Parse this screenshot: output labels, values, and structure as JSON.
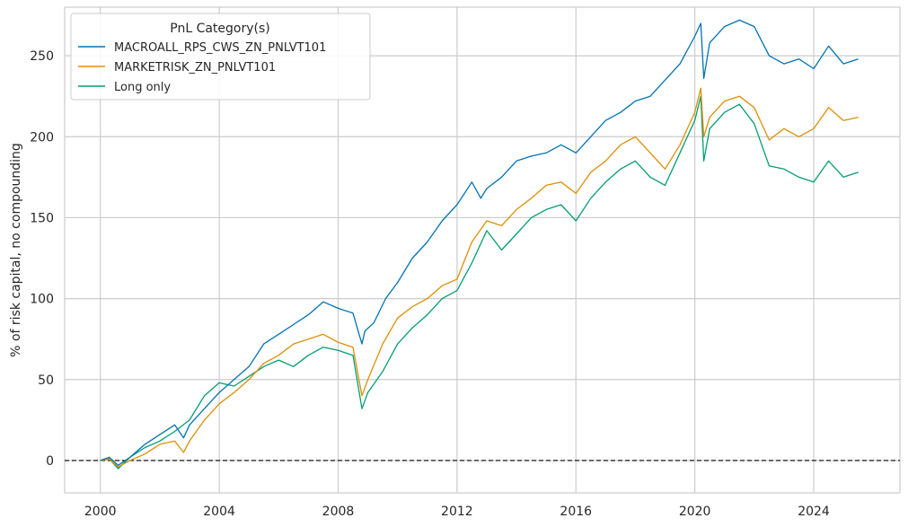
{
  "chart_data": {
    "type": "line",
    "title": "",
    "xlabel": "",
    "ylabel": "% of risk capital, no compounding",
    "xlim": [
      1998.8,
      2026.9
    ],
    "ylim": [
      -20,
      280
    ],
    "x_ticks": [
      2000,
      2004,
      2008,
      2012,
      2016,
      2020,
      2024
    ],
    "x_tick_labels": [
      "2000",
      "2004",
      "2008",
      "2012",
      "2016",
      "2020",
      "2024"
    ],
    "y_ticks": [
      0,
      50,
      100,
      150,
      200,
      250
    ],
    "y_tick_labels": [
      "0",
      "50",
      "100",
      "150",
      "200",
      "250"
    ],
    "grid": true,
    "zero_line": true,
    "legend": {
      "title": "PnL Category(s)",
      "placement": "top-left"
    },
    "series": [
      {
        "name": "MACROALL_RPS_CWS_ZN_PNLVT101",
        "color": "#0173b2",
        "points": [
          [
            2000.0,
            0
          ],
          [
            2000.3,
            2
          ],
          [
            2000.6,
            -3
          ],
          [
            2001.0,
            2
          ],
          [
            2001.5,
            10
          ],
          [
            2002.0,
            16
          ],
          [
            2002.5,
            22
          ],
          [
            2002.8,
            14
          ],
          [
            2003.0,
            22
          ],
          [
            2003.5,
            32
          ],
          [
            2004.0,
            42
          ],
          [
            2004.5,
            50
          ],
          [
            2005.0,
            58
          ],
          [
            2005.5,
            72
          ],
          [
            2006.0,
            78
          ],
          [
            2006.5,
            84
          ],
          [
            2007.0,
            90
          ],
          [
            2007.5,
            98
          ],
          [
            2008.0,
            94
          ],
          [
            2008.5,
            91
          ],
          [
            2008.8,
            72
          ],
          [
            2008.9,
            80
          ],
          [
            2009.2,
            85
          ],
          [
            2009.6,
            100
          ],
          [
            2010.0,
            110
          ],
          [
            2010.5,
            125
          ],
          [
            2011.0,
            135
          ],
          [
            2011.5,
            148
          ],
          [
            2012.0,
            158
          ],
          [
            2012.5,
            172
          ],
          [
            2012.8,
            162
          ],
          [
            2013.0,
            168
          ],
          [
            2013.5,
            175
          ],
          [
            2014.0,
            185
          ],
          [
            2014.5,
            188
          ],
          [
            2015.0,
            190
          ],
          [
            2015.5,
            195
          ],
          [
            2016.0,
            190
          ],
          [
            2016.5,
            200
          ],
          [
            2017.0,
            210
          ],
          [
            2017.5,
            215
          ],
          [
            2018.0,
            222
          ],
          [
            2018.5,
            225
          ],
          [
            2019.0,
            235
          ],
          [
            2019.5,
            245
          ],
          [
            2020.0,
            262
          ],
          [
            2020.2,
            270
          ],
          [
            2020.3,
            236
          ],
          [
            2020.5,
            258
          ],
          [
            2021.0,
            268
          ],
          [
            2021.5,
            272
          ],
          [
            2022.0,
            268
          ],
          [
            2022.5,
            250
          ],
          [
            2023.0,
            245
          ],
          [
            2023.5,
            248
          ],
          [
            2024.0,
            242
          ],
          [
            2024.5,
            256
          ],
          [
            2025.0,
            245
          ],
          [
            2025.5,
            248
          ]
        ]
      },
      {
        "name": "MARKETRISK_ZN_PNLVT101",
        "color": "#de8f05",
        "points": [
          [
            2000.0,
            0
          ],
          [
            2000.3,
            1
          ],
          [
            2000.6,
            -4
          ],
          [
            2001.0,
            0
          ],
          [
            2001.5,
            4
          ],
          [
            2002.0,
            10
          ],
          [
            2002.5,
            12
          ],
          [
            2002.8,
            5
          ],
          [
            2003.0,
            12
          ],
          [
            2003.5,
            25
          ],
          [
            2004.0,
            35
          ],
          [
            2004.5,
            42
          ],
          [
            2005.0,
            50
          ],
          [
            2005.5,
            60
          ],
          [
            2006.0,
            65
          ],
          [
            2006.5,
            72
          ],
          [
            2007.0,
            75
          ],
          [
            2007.5,
            78
          ],
          [
            2008.0,
            73
          ],
          [
            2008.5,
            70
          ],
          [
            2008.8,
            40
          ],
          [
            2009.0,
            50
          ],
          [
            2009.5,
            72
          ],
          [
            2010.0,
            88
          ],
          [
            2010.5,
            95
          ],
          [
            2011.0,
            100
          ],
          [
            2011.5,
            108
          ],
          [
            2012.0,
            112
          ],
          [
            2012.5,
            135
          ],
          [
            2013.0,
            148
          ],
          [
            2013.5,
            145
          ],
          [
            2014.0,
            155
          ],
          [
            2014.5,
            162
          ],
          [
            2015.0,
            170
          ],
          [
            2015.5,
            172
          ],
          [
            2016.0,
            165
          ],
          [
            2016.5,
            178
          ],
          [
            2017.0,
            185
          ],
          [
            2017.5,
            195
          ],
          [
            2018.0,
            200
          ],
          [
            2018.5,
            190
          ],
          [
            2019.0,
            180
          ],
          [
            2019.5,
            195
          ],
          [
            2020.0,
            215
          ],
          [
            2020.2,
            230
          ],
          [
            2020.3,
            200
          ],
          [
            2020.5,
            212
          ],
          [
            2021.0,
            222
          ],
          [
            2021.5,
            225
          ],
          [
            2022.0,
            218
          ],
          [
            2022.5,
            198
          ],
          [
            2023.0,
            205
          ],
          [
            2023.5,
            200
          ],
          [
            2024.0,
            205
          ],
          [
            2024.5,
            218
          ],
          [
            2025.0,
            210
          ],
          [
            2025.5,
            212
          ]
        ]
      },
      {
        "name": "Long only",
        "color": "#029e73",
        "points": [
          [
            2000.0,
            0
          ],
          [
            2000.3,
            1
          ],
          [
            2000.6,
            -5
          ],
          [
            2001.0,
            2
          ],
          [
            2001.5,
            8
          ],
          [
            2002.0,
            12
          ],
          [
            2002.5,
            18
          ],
          [
            2003.0,
            25
          ],
          [
            2003.5,
            40
          ],
          [
            2004.0,
            48
          ],
          [
            2004.5,
            46
          ],
          [
            2005.0,
            52
          ],
          [
            2005.5,
            58
          ],
          [
            2006.0,
            62
          ],
          [
            2006.5,
            58
          ],
          [
            2007.0,
            65
          ],
          [
            2007.5,
            70
          ],
          [
            2008.0,
            68
          ],
          [
            2008.5,
            65
          ],
          [
            2008.8,
            32
          ],
          [
            2009.0,
            42
          ],
          [
            2009.5,
            55
          ],
          [
            2010.0,
            72
          ],
          [
            2010.5,
            82
          ],
          [
            2011.0,
            90
          ],
          [
            2011.5,
            100
          ],
          [
            2012.0,
            105
          ],
          [
            2012.5,
            122
          ],
          [
            2013.0,
            142
          ],
          [
            2013.5,
            130
          ],
          [
            2014.0,
            140
          ],
          [
            2014.5,
            150
          ],
          [
            2015.0,
            155
          ],
          [
            2015.5,
            158
          ],
          [
            2016.0,
            148
          ],
          [
            2016.5,
            162
          ],
          [
            2017.0,
            172
          ],
          [
            2017.5,
            180
          ],
          [
            2018.0,
            185
          ],
          [
            2018.5,
            175
          ],
          [
            2019.0,
            170
          ],
          [
            2019.5,
            190
          ],
          [
            2020.0,
            210
          ],
          [
            2020.2,
            225
          ],
          [
            2020.3,
            185
          ],
          [
            2020.5,
            205
          ],
          [
            2021.0,
            215
          ],
          [
            2021.5,
            220
          ],
          [
            2022.0,
            208
          ],
          [
            2022.5,
            182
          ],
          [
            2023.0,
            180
          ],
          [
            2023.5,
            175
          ],
          [
            2024.0,
            172
          ],
          [
            2024.5,
            185
          ],
          [
            2025.0,
            175
          ],
          [
            2025.5,
            178
          ]
        ]
      }
    ]
  }
}
